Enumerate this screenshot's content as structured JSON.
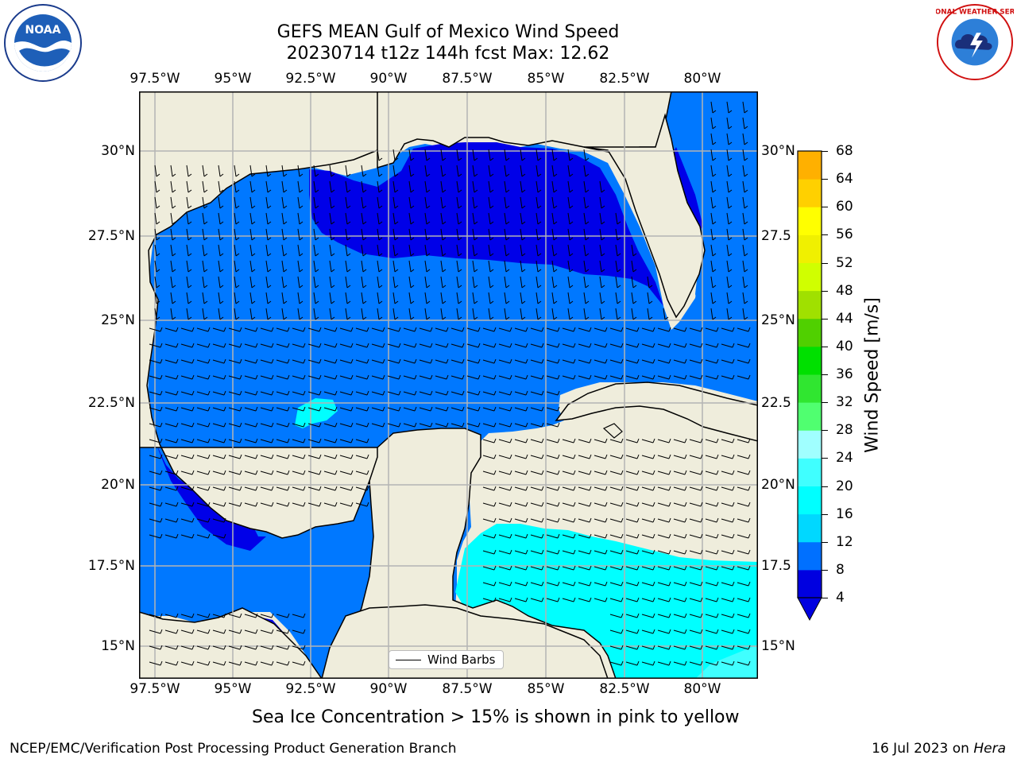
{
  "title": {
    "line1": "GEFS MEAN Gulf of Mexico Wind Speed",
    "line2": "20230714 t12z 144h fcst   Max: 12.62"
  },
  "logos": {
    "left": "NOAA",
    "right": "NATIONAL WEATHER SERVICE"
  },
  "axes": {
    "lon_ticks": [
      "97.5°W",
      "95°W",
      "92.5°W",
      "90°W",
      "87.5°W",
      "85°W",
      "82.5°W",
      "80°W"
    ],
    "lat_ticks_left": [
      "30°N",
      "27.5°N",
      "25°N",
      "22.5°N",
      "20°N",
      "17.5°N",
      "15°N"
    ],
    "lat_ticks_right": [
      "30°N",
      "27.5",
      "25°N",
      "22.5",
      "20°N",
      "17.5",
      "15°N"
    ]
  },
  "colorbar": {
    "label": "Wind Speed [m/s]",
    "ticks": [
      "68",
      "64",
      "60",
      "56",
      "52",
      "48",
      "44",
      "40",
      "36",
      "32",
      "28",
      "24",
      "20",
      "16",
      "12",
      "8",
      "4"
    ],
    "colors": [
      "#0000e0",
      "#0070ff",
      "#00d8ff",
      "#00ffff",
      "#40ffff",
      "#a0ffff",
      "#50ff70",
      "#30e630",
      "#00e000",
      "#50d000",
      "#a0e000",
      "#d0ff00",
      "#f0f000",
      "#ffff00",
      "#ffd000",
      "#ffb000",
      "#ff9000",
      "#ff6000",
      "#ff3000",
      "#ff0000"
    ]
  },
  "legend": {
    "label": "Wind Barbs"
  },
  "notes": {
    "sea_ice": "Sea Ice Concentration > 15% is shown in pink to yellow",
    "branch": "NCEP/EMC/Verification Post Processing Product Generation Branch",
    "date_text": "16 Jul 2023 on ",
    "machine": "Hera"
  },
  "map": {
    "colors": {
      "land": "#efeddc",
      "dark_blue": "#0000e8",
      "mid_blue": "#0078ff",
      "cyan": "#00ffff",
      "light_cyan": "#40ffff",
      "grid": "#b4b4b4"
    }
  }
}
